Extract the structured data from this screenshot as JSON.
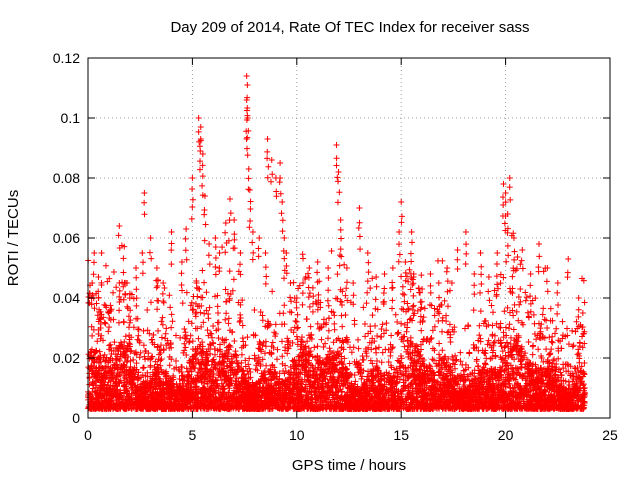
{
  "chart_data": {
    "type": "scatter",
    "title": "Day 209 of 2014, Rate Of TEC Index for receiver sass",
    "xlabel": "GPS time / hours",
    "ylabel": "ROTI / TECUs",
    "xlim": [
      0,
      25
    ],
    "ylim": [
      0,
      0.12
    ],
    "x_ticks": [
      0,
      5,
      10,
      15,
      20,
      25
    ],
    "y_ticks": [
      0,
      0.02,
      0.04,
      0.06,
      0.08,
      0.1,
      0.12
    ],
    "x_tick_labels": [
      "0",
      "5",
      "10",
      "15",
      "20",
      "25"
    ],
    "y_tick_labels": [
      "0",
      "0.02",
      "0.04",
      "0.06",
      "0.08",
      "0.1",
      "0.12"
    ],
    "grid": true,
    "marker": "+",
    "series": [
      {
        "name": "ROTI",
        "color": "#ff0000",
        "x": [
          0.2,
          0.3,
          0.5,
          0.5,
          0.6,
          1.0,
          1.5,
          1.5,
          2.0,
          2.3,
          2.6,
          2.7,
          3.0,
          3.3,
          3.6,
          4.0,
          4.5,
          4.7,
          5.0,
          5.2,
          5.3,
          5.4,
          5.4,
          5.5,
          5.6,
          5.8,
          6.1,
          6.3,
          6.6,
          6.8,
          7.0,
          7.3,
          7.6,
          7.6,
          7.65,
          7.7,
          7.75,
          7.9,
          8.2,
          8.5,
          8.6,
          8.8,
          9.0,
          9.2,
          9.3,
          9.4,
          9.5,
          9.7,
          10.0,
          10.3,
          10.6,
          11.0,
          11.5,
          11.9,
          12.0,
          12.1,
          12.4,
          12.7,
          13.0,
          13.4,
          13.8,
          14.2,
          14.6,
          14.9,
          15.0,
          15.2,
          15.5,
          15.6,
          16.0,
          16.4,
          16.8,
          17.2,
          17.7,
          18.1,
          18.5,
          18.8,
          19.2,
          19.6,
          19.9,
          20.0,
          20.1,
          20.2,
          20.4,
          20.8,
          21.2,
          21.6,
          22.0,
          22.5,
          23.0,
          23.5,
          23.7
        ],
        "y": [
          0.045,
          0.055,
          0.047,
          0.04,
          0.03,
          0.035,
          0.045,
          0.064,
          0.04,
          0.05,
          0.055,
          0.075,
          0.06,
          0.05,
          0.045,
          0.062,
          0.052,
          0.063,
          0.08,
          0.045,
          0.1,
          0.097,
          0.093,
          0.088,
          0.074,
          0.058,
          0.06,
          0.055,
          0.065,
          0.073,
          0.066,
          0.055,
          0.114,
          0.106,
          0.1,
          0.083,
          0.076,
          0.062,
          0.06,
          0.055,
          0.093,
          0.086,
          0.08,
          0.085,
          0.072,
          0.06,
          0.055,
          0.045,
          0.04,
          0.045,
          0.05,
          0.052,
          0.05,
          0.091,
          0.082,
          0.066,
          0.05,
          0.045,
          0.07,
          0.055,
          0.047,
          0.048,
          0.05,
          0.062,
          0.072,
          0.052,
          0.062,
          0.048,
          0.043,
          0.048,
          0.045,
          0.05,
          0.056,
          0.062,
          0.048,
          0.055,
          0.047,
          0.055,
          0.078,
          0.075,
          0.068,
          0.08,
          0.06,
          0.056,
          0.048,
          0.058,
          0.05,
          0.045,
          0.053,
          0.04,
          0.035
        ]
      }
    ],
    "dense_band": {
      "x_range": [
        0,
        23.8
      ],
      "typical_y_range": [
        0.003,
        0.035
      ]
    }
  }
}
